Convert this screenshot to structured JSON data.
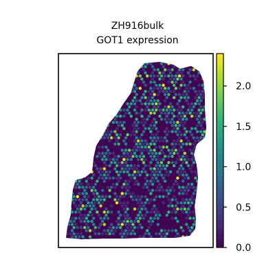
{
  "chart_data": {
    "type": "scatter",
    "subtype": "spatial hexbin expression map",
    "title_lines": [
      "ZH916bulk",
      "GOT1 expression"
    ],
    "xlabel": "",
    "ylabel": "",
    "axis_ticks_shown": false,
    "grid": false,
    "colorbar": {
      "colormap": "viridis",
      "range": [
        0.0,
        2.4
      ],
      "ticks": [
        0.0,
        0.5,
        1.0,
        1.5,
        2.0
      ],
      "tick_labels": [
        "0.0",
        "0.5",
        "1.0",
        "1.5",
        "2.0"
      ],
      "placement": "right"
    },
    "value_summary": "Most spots near 0.0-0.8 (dark purple / blue); scattered spots reach 1.0-2.4 (teal, green, yellow), denser toward upper right region",
    "colors": {
      "viridis": [
        "#440154",
        "#482878",
        "#3e4989",
        "#31688e",
        "#26828e",
        "#1f9e89",
        "#35b779",
        "#6ece58",
        "#b5de2b",
        "#fde725"
      ]
    }
  }
}
